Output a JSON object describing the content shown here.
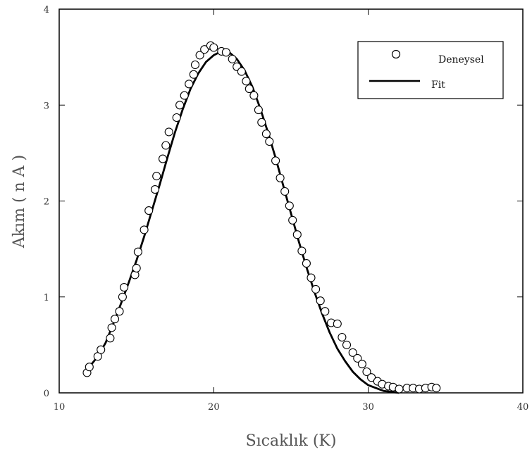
{
  "chart_data": {
    "type": "scatter",
    "xlabel": "Sıcaklık (K)",
    "ylabel": "Akım  ( n A )",
    "xlim": [
      10,
      40
    ],
    "ylim": [
      0,
      4
    ],
    "xticks": [
      "10",
      "20",
      "30",
      "40"
    ],
    "yticks": [
      "0",
      "1",
      "2",
      "3",
      "4"
    ],
    "grid": false,
    "legend_position": "top-right",
    "colors": {
      "markers": "#000000",
      "fit_line": "#000000",
      "axes": "#000000"
    },
    "series": [
      {
        "name": "Deneysel",
        "marker": "open-circle",
        "points": [
          [
            11.8,
            0.21
          ],
          [
            11.95,
            0.27
          ],
          [
            12.5,
            0.38
          ],
          [
            12.7,
            0.45
          ],
          [
            13.3,
            0.57
          ],
          [
            13.4,
            0.68
          ],
          [
            13.6,
            0.77
          ],
          [
            13.9,
            0.85
          ],
          [
            14.1,
            1.0
          ],
          [
            14.2,
            1.1
          ],
          [
            14.9,
            1.23
          ],
          [
            15.0,
            1.3
          ],
          [
            15.1,
            1.47
          ],
          [
            15.5,
            1.7
          ],
          [
            15.8,
            1.9
          ],
          [
            16.2,
            2.12
          ],
          [
            16.3,
            2.26
          ],
          [
            16.7,
            2.44
          ],
          [
            16.9,
            2.58
          ],
          [
            17.1,
            2.72
          ],
          [
            17.6,
            2.87
          ],
          [
            17.8,
            3.0
          ],
          [
            18.1,
            3.1
          ],
          [
            18.4,
            3.22
          ],
          [
            18.7,
            3.32
          ],
          [
            18.8,
            3.42
          ],
          [
            19.1,
            3.52
          ],
          [
            19.4,
            3.58
          ],
          [
            19.8,
            3.62
          ],
          [
            20.0,
            3.6
          ],
          [
            20.5,
            3.56
          ],
          [
            20.8,
            3.55
          ],
          [
            21.2,
            3.48
          ],
          [
            21.5,
            3.4
          ],
          [
            21.8,
            3.35
          ],
          [
            22.1,
            3.25
          ],
          [
            22.3,
            3.17
          ],
          [
            22.6,
            3.1
          ],
          [
            22.9,
            2.95
          ],
          [
            23.1,
            2.82
          ],
          [
            23.4,
            2.7
          ],
          [
            23.6,
            2.62
          ],
          [
            24.0,
            2.42
          ],
          [
            24.3,
            2.24
          ],
          [
            24.6,
            2.1
          ],
          [
            24.9,
            1.95
          ],
          [
            25.1,
            1.8
          ],
          [
            25.4,
            1.65
          ],
          [
            25.7,
            1.48
          ],
          [
            26.0,
            1.35
          ],
          [
            26.3,
            1.2
          ],
          [
            26.6,
            1.08
          ],
          [
            26.9,
            0.96
          ],
          [
            27.2,
            0.85
          ],
          [
            27.6,
            0.73
          ],
          [
            28.0,
            0.72
          ],
          [
            28.3,
            0.58
          ],
          [
            28.6,
            0.5
          ],
          [
            29.0,
            0.42
          ],
          [
            29.3,
            0.36
          ],
          [
            29.6,
            0.3
          ],
          [
            29.9,
            0.22
          ],
          [
            30.2,
            0.16
          ],
          [
            30.6,
            0.12
          ],
          [
            30.9,
            0.09
          ],
          [
            31.3,
            0.07
          ],
          [
            31.6,
            0.06
          ],
          [
            32.0,
            0.04
          ],
          [
            32.5,
            0.05
          ],
          [
            32.9,
            0.05
          ],
          [
            33.3,
            0.04
          ],
          [
            33.7,
            0.05
          ],
          [
            34.1,
            0.06
          ],
          [
            34.4,
            0.05
          ]
        ]
      },
      {
        "name": "Fit",
        "type": "line",
        "points": [
          [
            11.8,
            0.24
          ],
          [
            12.5,
            0.38
          ],
          [
            13.0,
            0.52
          ],
          [
            13.5,
            0.72
          ],
          [
            14.0,
            0.93
          ],
          [
            14.5,
            1.15
          ],
          [
            15.0,
            1.38
          ],
          [
            15.5,
            1.63
          ],
          [
            16.0,
            1.9
          ],
          [
            16.5,
            2.17
          ],
          [
            17.0,
            2.45
          ],
          [
            17.5,
            2.72
          ],
          [
            18.0,
            2.96
          ],
          [
            18.5,
            3.17
          ],
          [
            19.0,
            3.33
          ],
          [
            19.5,
            3.45
          ],
          [
            20.0,
            3.52
          ],
          [
            20.5,
            3.56
          ],
          [
            21.0,
            3.55
          ],
          [
            21.5,
            3.48
          ],
          [
            22.0,
            3.36
          ],
          [
            22.5,
            3.19
          ],
          [
            23.0,
            2.97
          ],
          [
            23.5,
            2.72
          ],
          [
            24.0,
            2.45
          ],
          [
            24.5,
            2.16
          ],
          [
            25.0,
            1.87
          ],
          [
            25.5,
            1.58
          ],
          [
            26.0,
            1.31
          ],
          [
            26.5,
            1.06
          ],
          [
            27.0,
            0.83
          ],
          [
            27.5,
            0.63
          ],
          [
            28.0,
            0.46
          ],
          [
            28.5,
            0.33
          ],
          [
            29.0,
            0.22
          ],
          [
            29.5,
            0.14
          ],
          [
            30.0,
            0.08
          ],
          [
            30.5,
            0.05
          ],
          [
            31.0,
            0.02
          ],
          [
            31.5,
            0.01
          ],
          [
            32.0,
            0.0
          ]
        ]
      }
    ]
  }
}
